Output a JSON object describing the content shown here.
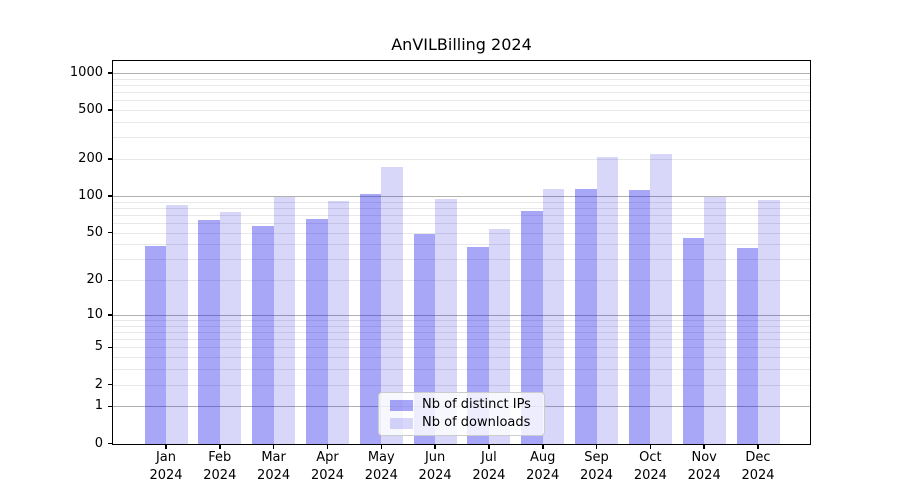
{
  "title": "AnVILBilling 2024",
  "chart_data": {
    "type": "bar",
    "title": "AnVILBilling 2024",
    "categories": [
      "Jan",
      "Feb",
      "Mar",
      "Apr",
      "May",
      "Jun",
      "Jul",
      "Aug",
      "Sep",
      "Oct",
      "Nov",
      "Dec"
    ],
    "year_label": "2024",
    "series": [
      {
        "name": "Nb of distinct IPs",
        "color": "rgba(13,8,229,0.36)",
        "color_hex": "#a6a5f0",
        "values": [
          39,
          64,
          57,
          65,
          103,
          49,
          38,
          76,
          115,
          113,
          45,
          37
        ]
      },
      {
        "name": "Nb of downloads",
        "color": "rgba(11,8,224,0.16)",
        "color_hex": "#d9d8fa",
        "values": [
          85,
          74,
          99,
          91,
          173,
          94,
          54,
          115,
          208,
          220,
          98,
          93
        ]
      }
    ],
    "xlabel": "",
    "ylabel": "",
    "y_scale": "log10(1+v)",
    "y_ticks": [
      0,
      1,
      2,
      5,
      10,
      20,
      50,
      100,
      200,
      500,
      1000
    ],
    "y_max": 1250,
    "major_gridlines": [
      1,
      10,
      100,
      1000
    ],
    "minor_gridlines": [
      2,
      3,
      4,
      5,
      6,
      7,
      8,
      9,
      20,
      30,
      40,
      50,
      60,
      70,
      80,
      90,
      200,
      300,
      400,
      500,
      600,
      700,
      800,
      900
    ],
    "grid": true,
    "legend_position": "bottom-center",
    "frame_color": "#000000",
    "major_grid_color": "#b0b0b0",
    "minor_grid_color": "#e8e8e8"
  }
}
